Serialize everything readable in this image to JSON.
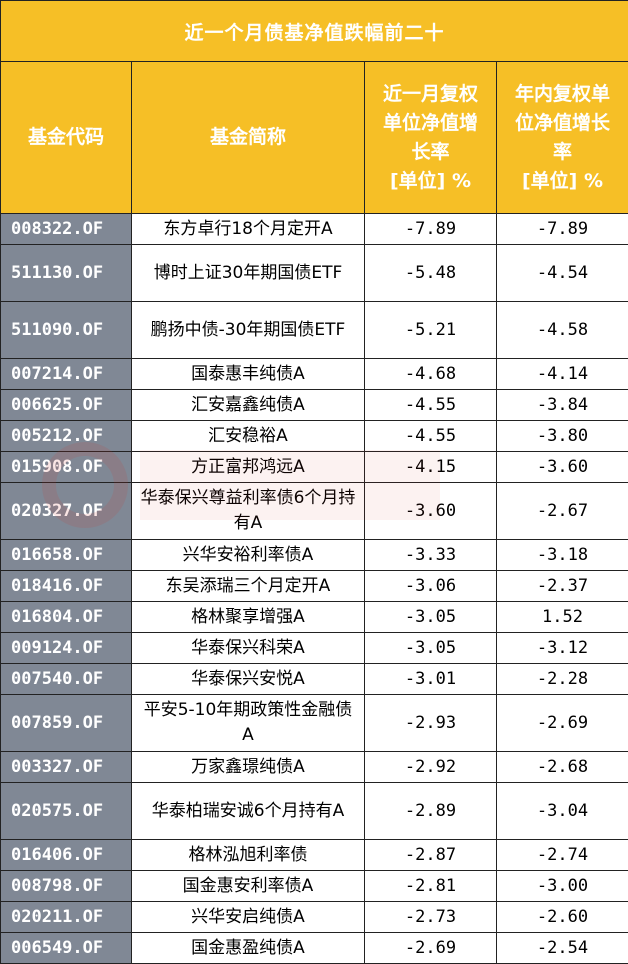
{
  "title": "近一个月债基净值跌幅前二十",
  "headers": {
    "code": "基金代码",
    "name": "基金简称",
    "month_lines": [
      "近一月复权",
      "单位净值增",
      "长率",
      "[单位] %"
    ],
    "ytd_lines": [
      "年内复权单",
      "位净值增长",
      "率",
      "[单位] %"
    ]
  },
  "rows": [
    {
      "code": "008322.OF",
      "name": "东方卓行18个月定开A",
      "month": "-7.89",
      "ytd": "-7.89"
    },
    {
      "code": "511130.OF",
      "name": "博时上证30年期国债ETF",
      "month": "-5.48",
      "ytd": "-4.54"
    },
    {
      "code": "511090.OF",
      "name": "鹏扬中债-30年期国债ETF",
      "month": "-5.21",
      "ytd": "-4.58"
    },
    {
      "code": "007214.OF",
      "name": "国泰惠丰纯债A",
      "month": "-4.68",
      "ytd": "-4.14"
    },
    {
      "code": "006625.OF",
      "name": "汇安嘉鑫纯债A",
      "month": "-4.55",
      "ytd": "-3.84"
    },
    {
      "code": "005212.OF",
      "name": "汇安稳裕A",
      "month": "-4.55",
      "ytd": "-3.80"
    },
    {
      "code": "015908.OF",
      "name": "方正富邦鸿远A",
      "month": "-4.15",
      "ytd": "-3.60"
    },
    {
      "code": "020327.OF",
      "name": "华泰保兴尊益利率债6个月持有A",
      "month": "-3.60",
      "ytd": "-2.67"
    },
    {
      "code": "016658.OF",
      "name": "兴华安裕利率债A",
      "month": "-3.33",
      "ytd": "-3.18"
    },
    {
      "code": "018416.OF",
      "name": "东吴添瑞三个月定开A",
      "month": "-3.06",
      "ytd": "-2.37"
    },
    {
      "code": "016804.OF",
      "name": "格林聚享增强A",
      "month": "-3.05",
      "ytd": "1.52"
    },
    {
      "code": "009124.OF",
      "name": "华泰保兴科荣A",
      "month": "-3.05",
      "ytd": "-3.12"
    },
    {
      "code": "007540.OF",
      "name": "华泰保兴安悦A",
      "month": "-3.01",
      "ytd": "-2.28"
    },
    {
      "code": "007859.OF",
      "name": "平安5-10年期政策性金融债A",
      "month": "-2.93",
      "ytd": "-2.69"
    },
    {
      "code": "003327.OF",
      "name": "万家鑫璟纯债A",
      "month": "-2.92",
      "ytd": "-2.68"
    },
    {
      "code": "020575.OF",
      "name": "华泰柏瑞安诚6个月持有A",
      "month": "-2.89",
      "ytd": "-3.04"
    },
    {
      "code": "016406.OF",
      "name": "格林泓旭利率债",
      "month": "-2.87",
      "ytd": "-2.74"
    },
    {
      "code": "008798.OF",
      "name": "国金惠安利率债A",
      "month": "-2.81",
      "ytd": "-3.00"
    },
    {
      "code": "020211.OF",
      "name": "兴华安启纯债A",
      "month": "-2.73",
      "ytd": "-2.60"
    },
    {
      "code": "006549.OF",
      "name": "国金惠盈纯债A",
      "month": "-2.69",
      "ytd": "-2.54"
    }
  ],
  "watermark": {
    "text": "财联社"
  },
  "colors": {
    "header_bg": "#f6bf26",
    "code_bg": "#808895",
    "header_text": "#ffffff"
  }
}
